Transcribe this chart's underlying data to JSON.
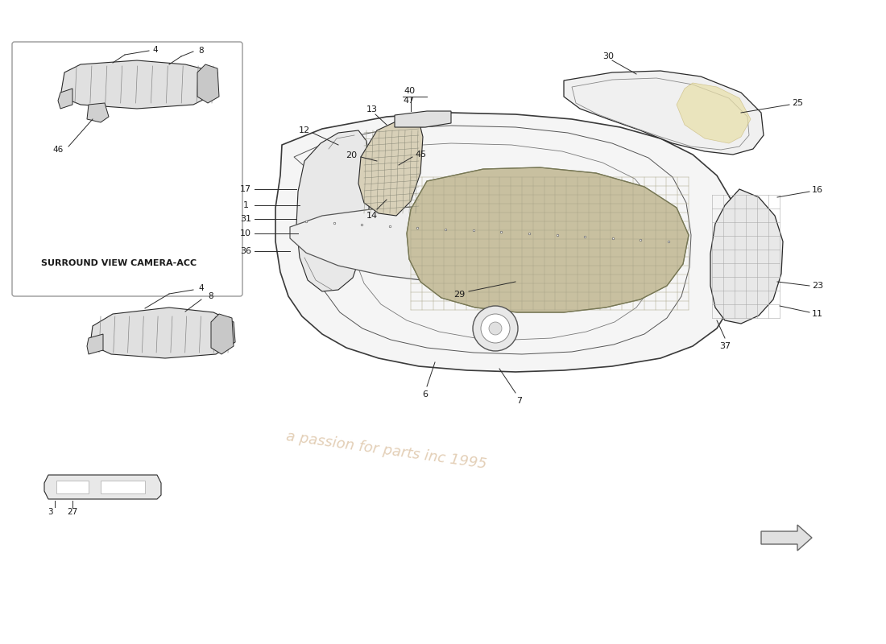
{
  "background_color": "#ffffff",
  "line_color": "#2a2a2a",
  "fill_light": "#f8f8f8",
  "fill_mid": "#e8e8e8",
  "fill_dark": "#d0d0d0",
  "fill_grille": "#c8bfa0",
  "fill_grille2": "#d4cdb0",
  "inset_label": "SURROUND VIEW CAMERA-ACC",
  "figsize": [
    11.0,
    8.0
  ],
  "dpi": 100,
  "watermark_color": "#cccccc",
  "watermark2_color": "#c8a878"
}
